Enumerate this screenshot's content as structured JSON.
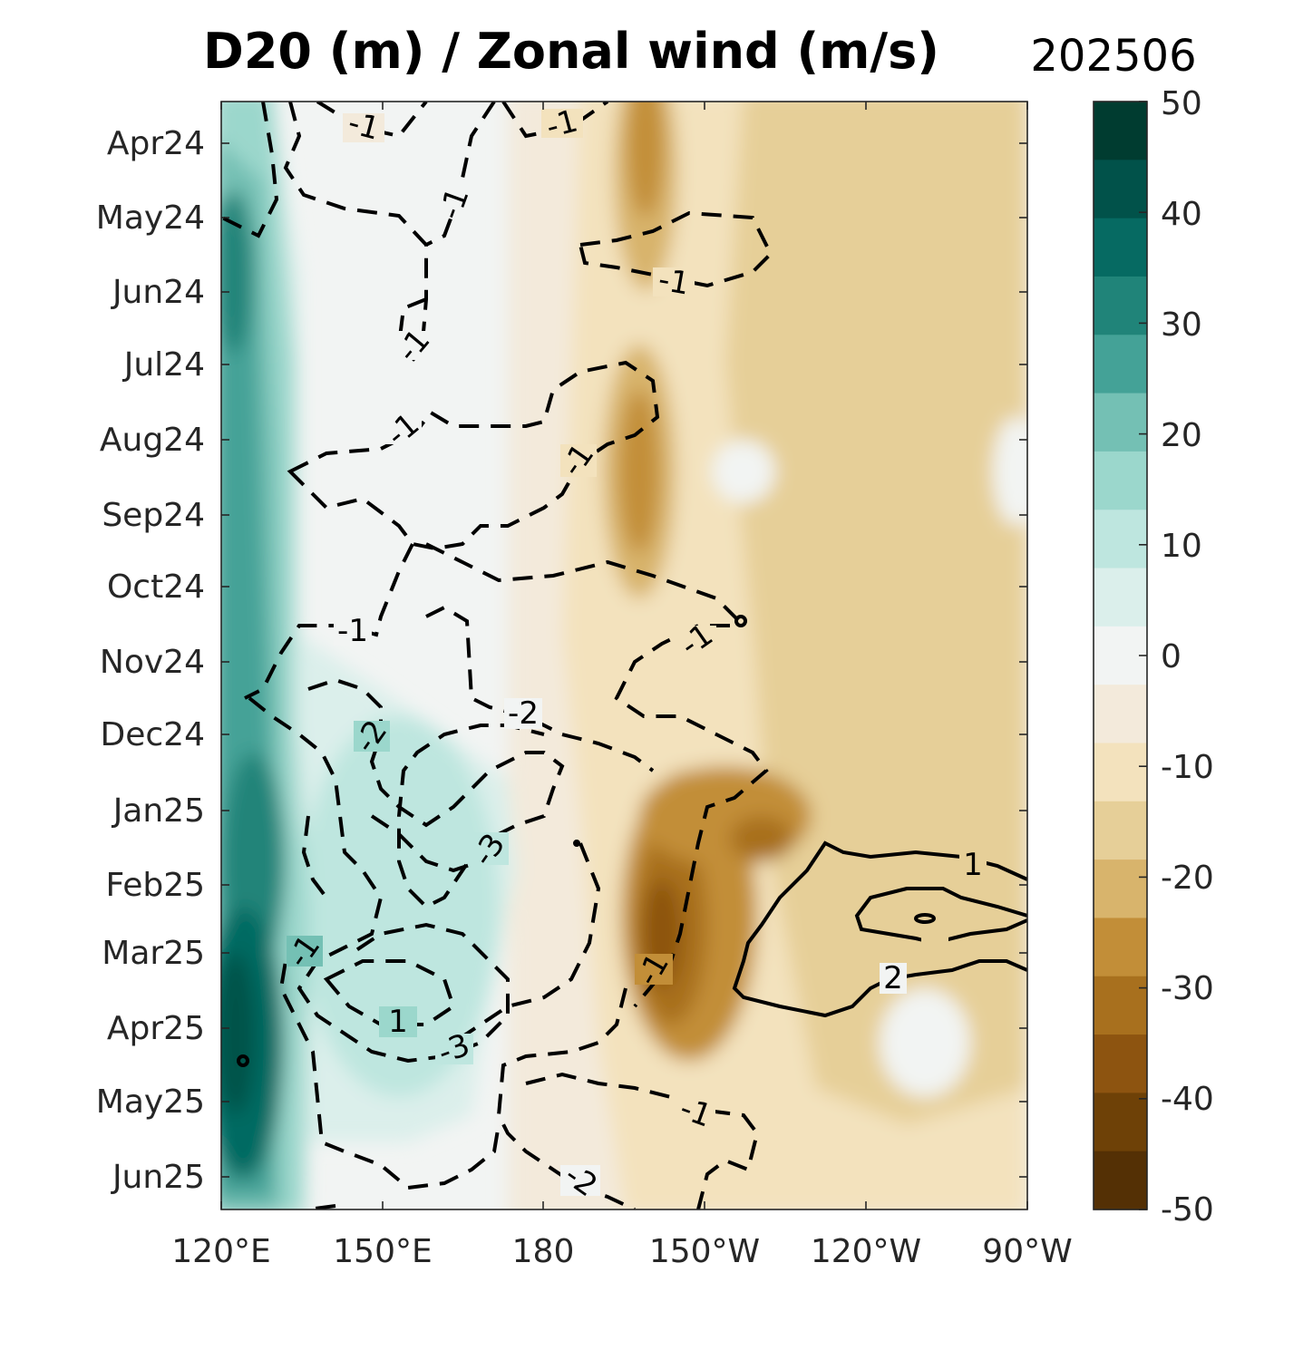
{
  "chart_data": {
    "type": "heatmap",
    "title": "D20 (m) / Zonal wind (m/s)",
    "date_label": "202506",
    "x_axis": {
      "ticks": [
        "120°E",
        "150°E",
        "180",
        "150°W",
        "120°W",
        "90°W"
      ],
      "range": [
        "120°E",
        "90°W"
      ]
    },
    "y_axis": {
      "ticks": [
        "Apr24",
        "May24",
        "Jun24",
        "Jul24",
        "Aug24",
        "Sep24",
        "Oct24",
        "Nov24",
        "Dec24",
        "Jan25",
        "Feb25",
        "Mar25",
        "Apr25",
        "May25",
        "Jun25"
      ],
      "direction": "time increasing downward"
    },
    "colorbar": {
      "variable": "D20 (m)",
      "ticks": [
        "50",
        "40",
        "30",
        "20",
        "10",
        "0",
        "-10",
        "-20",
        "-30",
        "-40",
        "-50"
      ],
      "range": [
        -50,
        50
      ],
      "step": 5,
      "colors": [
        "#003c30",
        "#01524a",
        "#066a62",
        "#208479",
        "#44a297",
        "#74c0b4",
        "#9bd7cc",
        "#bee6df",
        "#dbefeb",
        "#f2f4f3",
        "#f3eadb",
        "#f3e2bd",
        "#e6cf98",
        "#d8b46c",
        "#c28e38",
        "#a8701e",
        "#8d5410",
        "#6e4107",
        "#543005"
      ]
    },
    "contours": {
      "variable": "Zonal wind (m/s)",
      "negative_dashed": true,
      "labels": [
        "-1",
        "-1",
        "-1",
        "-1",
        "-1",
        "-1",
        "-1",
        "-1",
        "-1",
        "-1",
        "-1",
        "-1",
        "-2",
        "-2",
        "-2",
        "-3",
        "-3",
        "1",
        "1",
        "2"
      ]
    }
  }
}
